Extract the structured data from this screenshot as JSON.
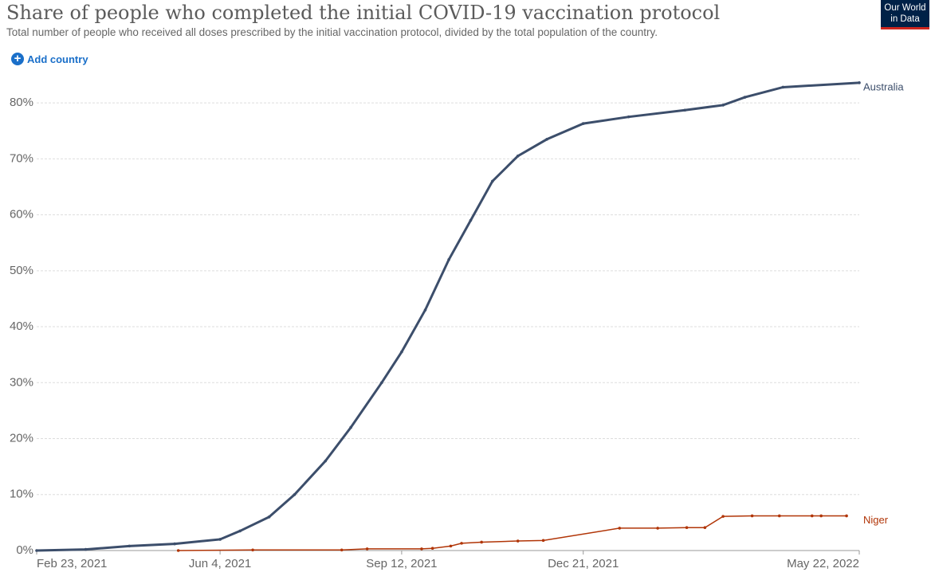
{
  "header": {
    "title": "Share of people who completed the initial COVID-19 vaccination protocol",
    "subtitle": "Total number of people who received all doses prescribed by the initial vaccination protocol, divided by the total population of the country.",
    "add_country": "Add country",
    "logo": [
      "Our World",
      "in Data"
    ]
  },
  "chart_data": {
    "type": "line",
    "xlim": [
      "2021-02-23",
      "2022-05-22"
    ],
    "xticks": [
      {
        "value": "2021-02-23",
        "label": "Feb 23, 2021"
      },
      {
        "value": "2021-06-04",
        "label": "Jun 4, 2021"
      },
      {
        "value": "2021-09-12",
        "label": "Sep 12, 2021"
      },
      {
        "value": "2021-12-21",
        "label": "Dec 21, 2021"
      },
      {
        "value": "2022-05-22",
        "label": "May 22, 2022"
      }
    ],
    "ylim": [
      0,
      85
    ],
    "yticks": [
      {
        "value": 0,
        "label": "0%"
      },
      {
        "value": 10,
        "label": "10%"
      },
      {
        "value": 20,
        "label": "20%"
      },
      {
        "value": 30,
        "label": "30%"
      },
      {
        "value": 40,
        "label": "40%"
      },
      {
        "value": 50,
        "label": "50%"
      },
      {
        "value": 60,
        "label": "60%"
      },
      {
        "value": 70,
        "label": "70%"
      },
      {
        "value": 80,
        "label": "80%"
      }
    ],
    "grid": true,
    "series": [
      {
        "name": "Australia",
        "color": "#3c4e6b",
        "x": [
          "2021-02-23",
          "2021-03-22",
          "2021-04-15",
          "2021-05-10",
          "2021-06-04",
          "2021-06-15",
          "2021-07-01",
          "2021-07-15",
          "2021-08-01",
          "2021-08-15",
          "2021-09-01",
          "2021-09-12",
          "2021-09-25",
          "2021-10-08",
          "2021-10-20",
          "2021-11-01",
          "2021-11-15",
          "2021-12-01",
          "2021-12-21",
          "2022-01-15",
          "2022-02-15",
          "2022-03-08",
          "2022-03-20",
          "2022-04-10",
          "2022-05-22"
        ],
        "values": [
          0,
          0.2,
          0.8,
          1.2,
          2.0,
          3.5,
          6,
          10,
          16,
          22,
          30,
          35.5,
          43,
          52,
          59,
          66,
          70.5,
          73.5,
          76.3,
          77.5,
          78.7,
          79.6,
          81,
          82.8,
          83.6
        ]
      },
      {
        "name": "Niger",
        "color": "#b13507",
        "x": [
          "2021-05-12",
          "2021-06-22",
          "2021-08-10",
          "2021-08-24",
          "2021-09-23",
          "2021-09-29",
          "2021-10-09",
          "2021-10-15",
          "2021-10-26",
          "2021-11-15",
          "2021-11-29",
          "2022-01-10",
          "2022-01-31",
          "2022-02-16",
          "2022-02-26",
          "2022-03-08",
          "2022-03-24",
          "2022-04-08",
          "2022-04-26",
          "2022-05-01",
          "2022-05-15"
        ],
        "values": [
          0,
          0.1,
          0.1,
          0.3,
          0.3,
          0.4,
          0.8,
          1.3,
          1.5,
          1.7,
          1.8,
          4.0,
          4.0,
          4.1,
          4.1,
          6.1,
          6.2,
          6.2,
          6.2,
          6.2,
          6.2
        ]
      }
    ]
  }
}
